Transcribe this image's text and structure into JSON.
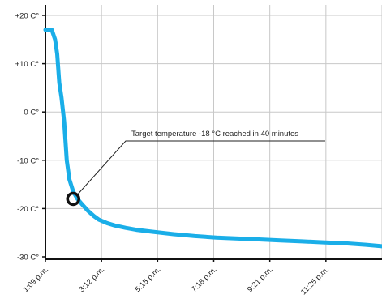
{
  "chart_data": {
    "type": "line",
    "title": "",
    "xlabel": "",
    "ylabel": "",
    "x_tick_labels": [
      "1:09 p.m.",
      "3:12 p.m.",
      "5:15 p.m.",
      "7:18 p.m.",
      "9:21 p.m.",
      "11:25 p.m."
    ],
    "y_tick_labels": [
      "+20 C°",
      "+10 C°",
      "0 C°",
      "-10 C°",
      "-20 C°",
      "-30 C°"
    ],
    "y_ticks": [
      20,
      10,
      0,
      -10,
      -20,
      -30
    ],
    "ylim": [
      -30,
      20
    ],
    "xlim_minutes": [
      0,
      630
    ],
    "grid": true,
    "series": [
      {
        "x_minutes": [
          0,
          12,
          18,
          22,
          26,
          30,
          35,
          40,
          45,
          52,
          60,
          70,
          80,
          90,
          100,
          115,
          130,
          150,
          170,
          200,
          240,
          280,
          320,
          360,
          400,
          440,
          480,
          520,
          560,
          600,
          630
        ],
        "values": [
          17,
          17,
          15,
          12,
          6,
          3,
          -2,
          -10,
          -14,
          -16.5,
          -18,
          -19.3,
          -20.5,
          -21.5,
          -22.3,
          -23,
          -23.5,
          -24,
          -24.4,
          -24.8,
          -25.3,
          -25.7,
          -26,
          -26.2,
          -26.4,
          -26.6,
          -26.8,
          -27,
          -27.2,
          -27.5,
          -27.8
        ],
        "color": "#1aaee8"
      }
    ],
    "annotation": {
      "text": "Target temperature -18 °C reached in 40 minutes",
      "x_minutes": 52,
      "y_value": -18
    }
  }
}
